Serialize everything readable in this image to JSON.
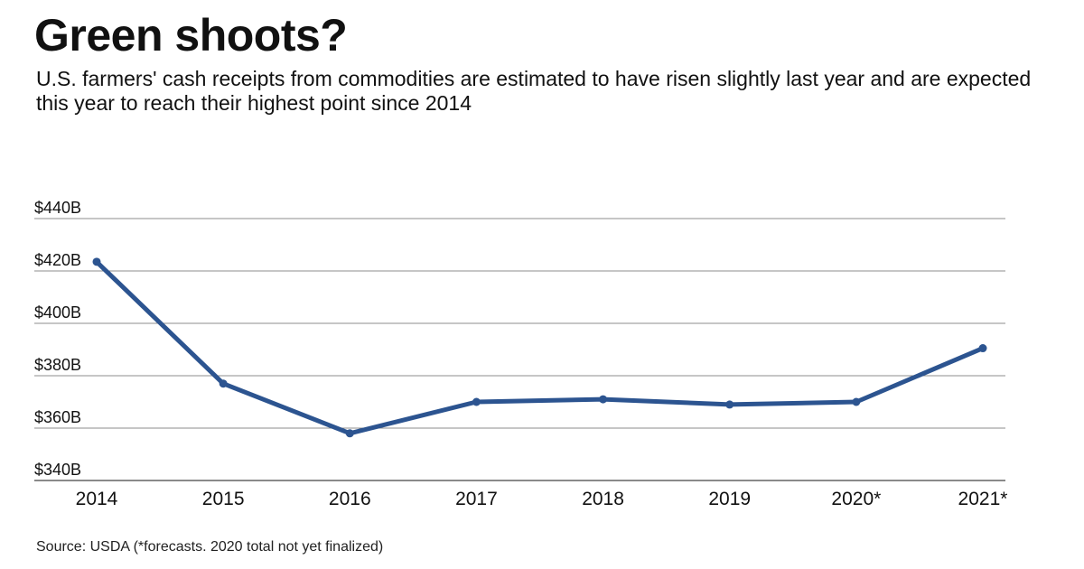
{
  "header": {
    "title": "Green shoots?",
    "subtitle": "U.S. farmers' cash receipts from commodities are estimated to have risen slightly last year and are expected this year to reach their highest point since 2014"
  },
  "footer": {
    "source": "Source: USDA (*forecasts. 2020 total not yet finalized)"
  },
  "colors": {
    "line": "#2c5490",
    "gridline": "#8c8c8c",
    "text": "#111111"
  },
  "chart_data": {
    "type": "line",
    "title": "Green shoots?",
    "xlabel": "",
    "ylabel": "",
    "categories": [
      "2014",
      "2015",
      "2016",
      "2017",
      "2018",
      "2019",
      "2020*",
      "2021*"
    ],
    "series": [
      {
        "name": "U.S. farmers' cash receipts from commodities",
        "values": [
          423.5,
          377,
          358,
          370,
          371,
          369,
          370,
          390.5
        ]
      }
    ],
    "yticks": [
      340,
      360,
      380,
      400,
      420,
      440
    ],
    "ytick_labels": [
      "$340B",
      "$360B",
      "$380B",
      "$400B",
      "$420B",
      "$440B"
    ],
    "ylim": [
      340,
      440
    ],
    "grid": true,
    "legend": "none"
  }
}
